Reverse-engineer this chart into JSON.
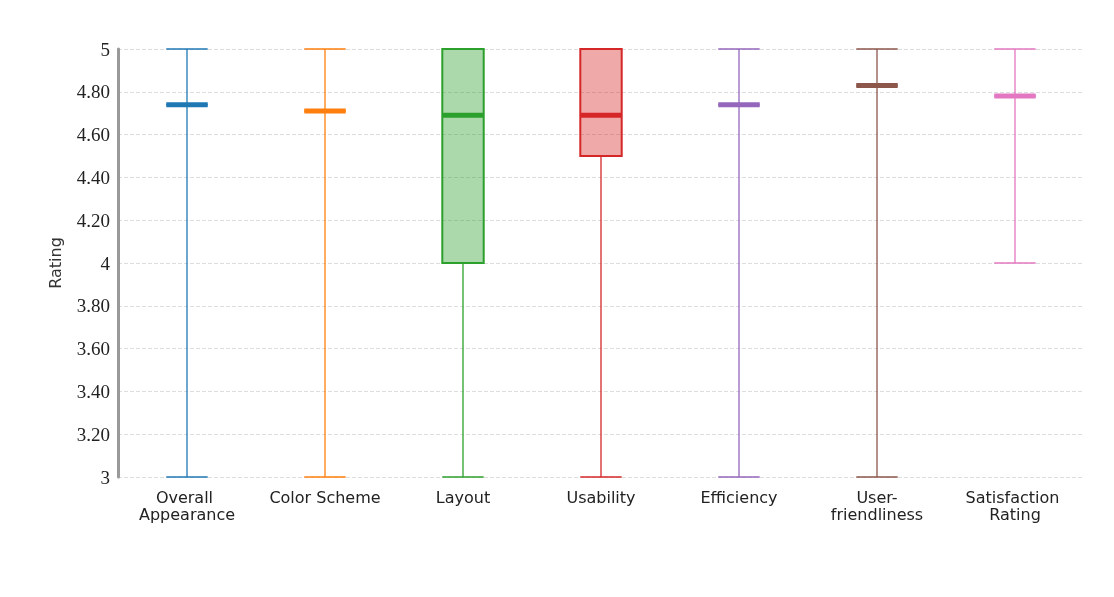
{
  "chart_data": {
    "type": "box",
    "ylabel": "Rating",
    "categories": [
      "Overall Appearance",
      "Color Scheme",
      "Layout",
      "Usability",
      "Efficiency",
      "User-friendliness",
      "Satisfaction Rating"
    ],
    "colors": [
      "#1f77b4",
      "#ff7f0e",
      "#2ca02c",
      "#d62728",
      "#9467bd",
      "#8c564b",
      "#e377c2"
    ],
    "boxes": [
      {
        "low": 3,
        "q1": 4.74,
        "median": 4.74,
        "q3": 4.74,
        "high": 5
      },
      {
        "low": 3,
        "q1": 4.71,
        "median": 4.71,
        "q3": 4.71,
        "high": 5
      },
      {
        "low": 3,
        "q1": 4,
        "median": 4.69,
        "q3": 5,
        "high": 5
      },
      {
        "low": 3,
        "q1": 4.5,
        "median": 4.69,
        "q3": 5,
        "high": 5
      },
      {
        "low": 3,
        "q1": 4.74,
        "median": 4.74,
        "q3": 4.74,
        "high": 5
      },
      {
        "low": 3,
        "q1": 4.83,
        "median": 4.83,
        "q3": 4.83,
        "high": 5
      },
      {
        "low": 4,
        "q1": 4.78,
        "median": 4.78,
        "q3": 4.78,
        "high": 5
      }
    ],
    "ylim": [
      3,
      5
    ],
    "yticks": [
      3,
      {
        "value": 3.2,
        "label": "3.20"
      },
      {
        "value": 3.4,
        "label": "3.40"
      },
      {
        "value": 3.6,
        "label": "3.60"
      },
      {
        "value": 3.8,
        "label": "3.80"
      },
      4,
      {
        "value": 4.2,
        "label": "4.20"
      },
      {
        "value": 4.4,
        "label": "4.40"
      },
      {
        "value": 4.6,
        "label": "4.60"
      },
      {
        "value": 4.8,
        "label": "4.80"
      },
      5
    ],
    "grid": "y"
  }
}
